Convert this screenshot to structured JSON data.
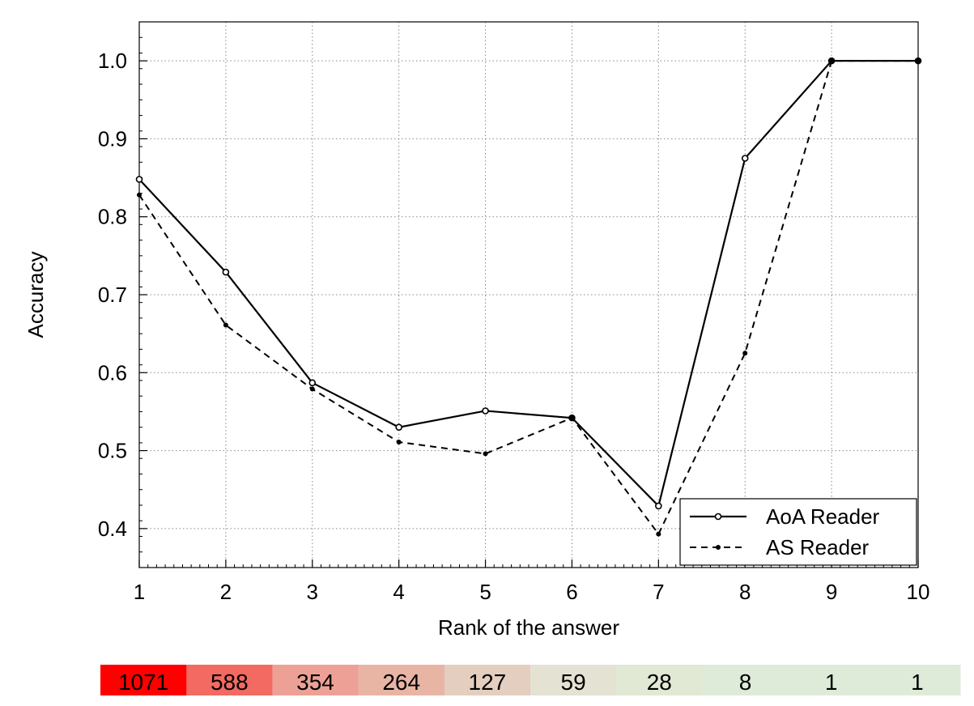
{
  "chart_data": {
    "type": "line",
    "xlabel": "Rank of the answer",
    "ylabel": "Accuracy",
    "x": [
      1,
      2,
      3,
      4,
      5,
      6,
      7,
      8,
      9,
      10
    ],
    "x_ticks": [
      "1",
      "2",
      "3",
      "4",
      "5",
      "6",
      "7",
      "8",
      "9",
      "10"
    ],
    "y_ticks": [
      "0.4",
      "0.5",
      "0.6",
      "0.7",
      "0.8",
      "0.9",
      "1.0"
    ],
    "xlim": [
      1,
      10
    ],
    "ylim": [
      0.35,
      1.05
    ],
    "grid": true,
    "legend_position": "bottom-right",
    "series": [
      {
        "name": "AoA Reader",
        "line_style": "solid",
        "marker": "open-circle",
        "values": [
          0.848,
          0.729,
          0.587,
          0.53,
          0.551,
          0.542,
          0.429,
          0.875,
          1.0,
          1.0
        ]
      },
      {
        "name": "AS Reader",
        "line_style": "dashed",
        "marker": "filled-dot",
        "values": [
          0.828,
          0.661,
          0.579,
          0.511,
          0.496,
          0.542,
          0.393,
          0.625,
          1.0,
          1.0
        ]
      }
    ],
    "count_strip": {
      "values": [
        "1071",
        "588",
        "354",
        "264",
        "127",
        "59",
        "28",
        "8",
        "1",
        "1"
      ],
      "colors": [
        "#ff0000",
        "#f26a61",
        "#eda196",
        "#e8b5a5",
        "#e3cec0",
        "#e4e2d3",
        "#e1e8d3",
        "#deebd8",
        "#deebd8",
        "#deebd8"
      ]
    }
  }
}
